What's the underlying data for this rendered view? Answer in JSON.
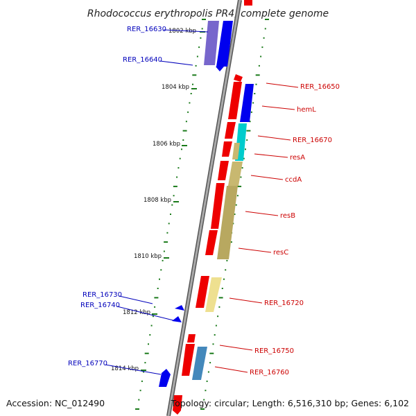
{
  "title": "Rhodococcus erythropolis PR4, complete genome",
  "footer": {
    "accession": "Accession: NC_012490",
    "topology": "Topology: circular; Length: 6,516,310 bp; Genes: 6,102"
  },
  "colors": {
    "forward_label": "#0000bb",
    "reverse_label": "#cc0000",
    "forward_gene": "#0000ee",
    "reverse_gene": "#ee0000",
    "backbone": "#888888",
    "tick": "#1a7a1a"
  },
  "ticks": [
    {
      "label": "1802 kbp"
    },
    {
      "label": "1804 kbp"
    },
    {
      "label": "1806 kbp"
    },
    {
      "label": "1808 kbp"
    },
    {
      "label": "1810 kbp"
    },
    {
      "label": "1812 kbp"
    },
    {
      "label": "1814 kbp"
    }
  ],
  "genes_forward": [
    {
      "name": "RER_16630"
    },
    {
      "name": "RER_16640"
    },
    {
      "name": "RER_16730"
    },
    {
      "name": "RER_16740"
    },
    {
      "name": "RER_16770"
    }
  ],
  "genes_reverse": [
    {
      "name": "RER_16650"
    },
    {
      "name": "hemL"
    },
    {
      "name": "RER_16670"
    },
    {
      "name": "resA"
    },
    {
      "name": "ccdA"
    },
    {
      "name": "resB"
    },
    {
      "name": "resC"
    },
    {
      "name": "RER_16720"
    },
    {
      "name": "RER_16750"
    },
    {
      "name": "RER_16760"
    }
  ]
}
